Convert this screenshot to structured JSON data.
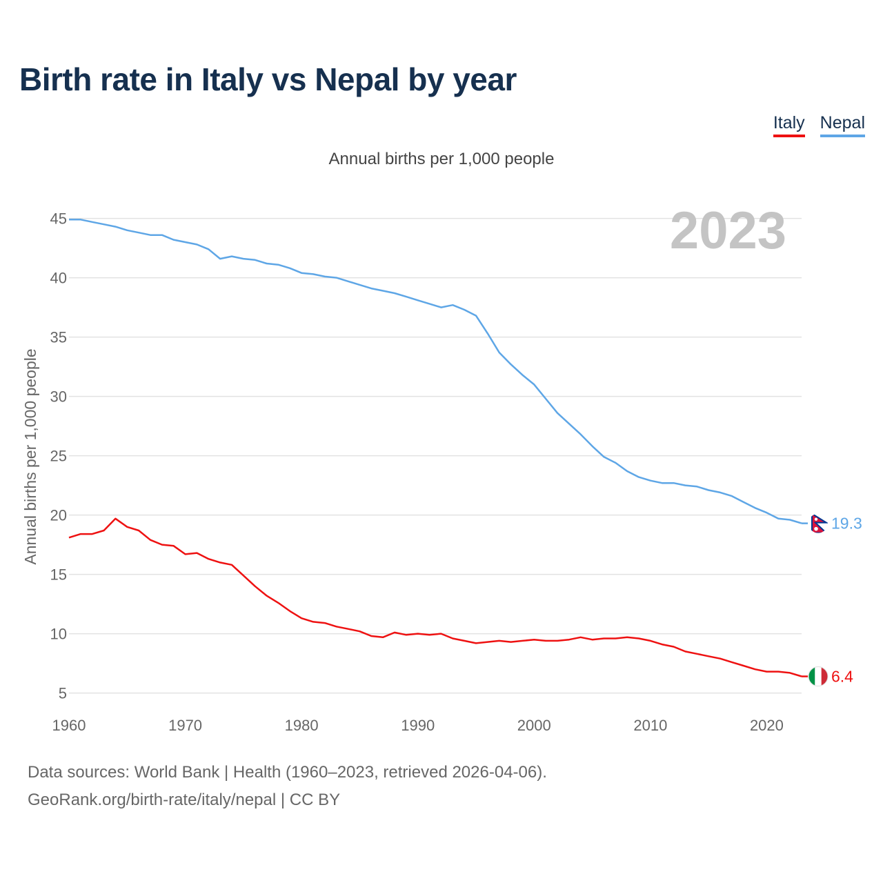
{
  "title": "Birth rate in Italy vs Nepal by year",
  "legend": [
    {
      "label": "Italy",
      "color": "#ee1111"
    },
    {
      "label": "Nepal",
      "color": "#5ea6e6"
    }
  ],
  "source_line1": "Data sources: World Bank | Health (1960–2023, retrieved 2026-04-06).",
  "source_line2": "GeoRank.org/birth-rate/italy/nepal | CC BY",
  "chart_data": {
    "type": "line",
    "title": "Birth rate in Italy vs Nepal by year",
    "subtitle": "Annual births per 1,000 people",
    "ylabel": "Annual births per 1,000 people",
    "xlabel": "",
    "xlim": [
      1960,
      2023
    ],
    "ylim": [
      3,
      48
    ],
    "yticks": [
      5,
      10,
      15,
      20,
      25,
      30,
      35,
      40,
      45
    ],
    "xticks": [
      1960,
      1970,
      1980,
      1990,
      2000,
      2010,
      2020
    ],
    "year_label": "2023",
    "x": [
      1960,
      1961,
      1962,
      1963,
      1964,
      1965,
      1966,
      1967,
      1968,
      1969,
      1970,
      1971,
      1972,
      1973,
      1974,
      1975,
      1976,
      1977,
      1978,
      1979,
      1980,
      1981,
      1982,
      1983,
      1984,
      1985,
      1986,
      1987,
      1988,
      1989,
      1990,
      1991,
      1992,
      1993,
      1994,
      1995,
      1996,
      1997,
      1998,
      1999,
      2000,
      2001,
      2002,
      2003,
      2004,
      2005,
      2006,
      2007,
      2008,
      2009,
      2010,
      2011,
      2012,
      2013,
      2014,
      2015,
      2016,
      2017,
      2018,
      2019,
      2020,
      2021,
      2022,
      2023
    ],
    "series": [
      {
        "name": "Italy",
        "color": "#ee1111",
        "end_label": "6.4",
        "values": [
          18.1,
          18.4,
          18.4,
          18.7,
          19.7,
          19.0,
          18.7,
          17.9,
          17.5,
          17.4,
          16.7,
          16.8,
          16.3,
          16.0,
          15.8,
          14.9,
          14.0,
          13.2,
          12.6,
          11.9,
          11.3,
          11.0,
          10.9,
          10.6,
          10.4,
          10.2,
          9.8,
          9.7,
          10.1,
          9.9,
          10.0,
          9.9,
          10.0,
          9.6,
          9.4,
          9.2,
          9.3,
          9.4,
          9.3,
          9.4,
          9.5,
          9.4,
          9.4,
          9.5,
          9.7,
          9.5,
          9.6,
          9.6,
          9.7,
          9.6,
          9.4,
          9.1,
          8.9,
          8.5,
          8.3,
          8.1,
          7.9,
          7.6,
          7.3,
          7.0,
          6.8,
          6.8,
          6.7,
          6.4
        ]
      },
      {
        "name": "Nepal",
        "color": "#5ea6e6",
        "end_label": "19.3",
        "values": [
          44.9,
          44.9,
          44.7,
          44.5,
          44.3,
          44.0,
          43.8,
          43.6,
          43.6,
          43.2,
          43.0,
          42.8,
          42.4,
          41.6,
          41.8,
          41.6,
          41.5,
          41.2,
          41.1,
          40.8,
          40.4,
          40.3,
          40.1,
          40.0,
          39.7,
          39.4,
          39.1,
          38.9,
          38.7,
          38.4,
          38.1,
          37.8,
          37.5,
          37.7,
          37.3,
          36.8,
          35.3,
          33.7,
          32.7,
          31.8,
          31.0,
          29.8,
          28.6,
          27.7,
          26.8,
          25.8,
          24.9,
          24.4,
          23.7,
          23.2,
          22.9,
          22.7,
          22.7,
          22.5,
          22.4,
          22.1,
          21.9,
          21.6,
          21.1,
          20.6,
          20.2,
          19.7,
          19.6,
          19.3
        ]
      }
    ]
  }
}
